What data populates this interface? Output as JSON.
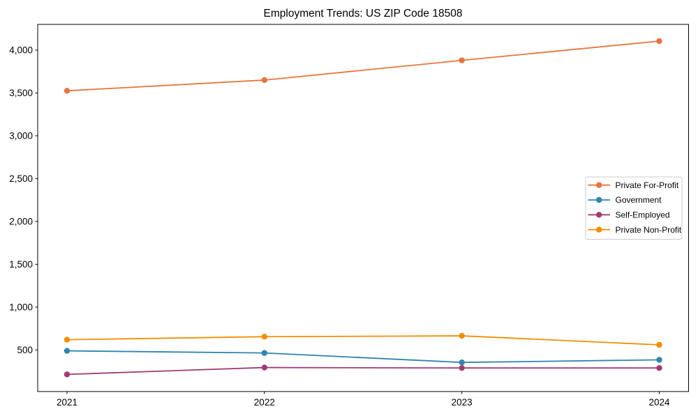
{
  "chart_data": {
    "type": "line",
    "title": "Employment Trends: US ZIP Code 18508",
    "xlabel": "",
    "ylabel": "",
    "x": [
      "2021",
      "2022",
      "2023",
      "2024"
    ],
    "series": [
      {
        "name": "Private For-Profit",
        "color": "#E8743B",
        "values": [
          3525,
          3650,
          3880,
          4105
        ]
      },
      {
        "name": "Government",
        "color": "#2E86AB",
        "values": [
          490,
          465,
          355,
          385
        ]
      },
      {
        "name": "Self-Employed",
        "color": "#A23B72",
        "values": [
          215,
          295,
          290,
          290
        ]
      },
      {
        "name": "Private Non-Profit",
        "color": "#F18F01",
        "values": [
          620,
          655,
          665,
          560
        ]
      }
    ],
    "ylim": [
      15,
      4300
    ],
    "yticks": [
      500,
      1000,
      1500,
      2000,
      2500,
      3000,
      3500,
      4000
    ],
    "ytick_labels": [
      "500",
      "1,000",
      "1,500",
      "2,000",
      "2,500",
      "3,000",
      "3,500",
      "4,000"
    ],
    "grid": false,
    "legend_position": "center right",
    "text_color": "#000000",
    "spine_color": "#000000",
    "legend_border_color": "#cccccc",
    "legend_background": "#ffffff"
  }
}
